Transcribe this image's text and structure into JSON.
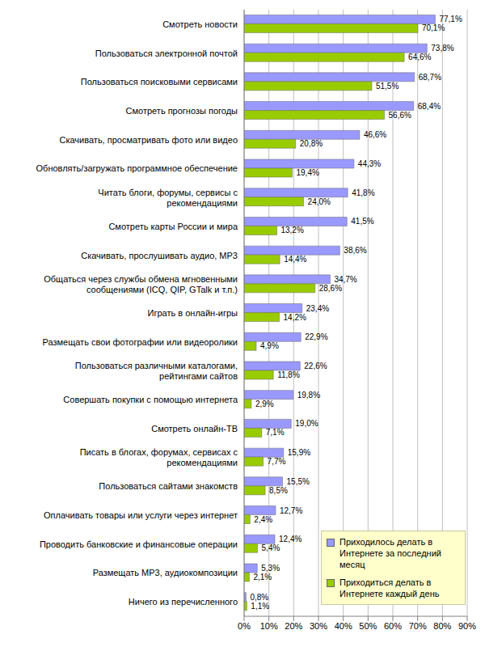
{
  "chart_data": {
    "type": "bar",
    "orientation": "horizontal",
    "categories": [
      "Смотреть новости",
      "Пользоваться электронной почтой",
      "Пользоваться поисковыми сервисами",
      "Смотреть прогнозы погоды",
      "Скачивать, просматривать фото или видео",
      "Обновлять/загружать программное обеспечение",
      "Читать блоги, форумы, сервисы с рекомендациями",
      "Смотреть карты России и мира",
      "Скачивать, прослушивать аудио, MP3",
      "Общаться через службы обмена мгновенными сообщениями (ICQ, QIP, GTalk и т.п.)",
      "Играть в онлайн-игры",
      "Размещать свои фотографии или видеоролики",
      "Пользоваться различными каталогами, рейтингами сайтов",
      "Совершать покупки с помощью интернета",
      "Смотреть онлайн-ТВ",
      "Писать в блогах, форумах, сервисах с рекомендациями",
      "Пользоваться сайтами знакомств",
      "Оплачивать товары или услуги через интернет",
      "Проводить банковские и финансовые операции",
      "Размещать MP3, аудиокомпозиции",
      "Ничего из перечисленного"
    ],
    "series": [
      {
        "name": "Приходилось делать в Интернете за последний месяц",
        "color": "#9999ff",
        "values": [
          77.1,
          73.8,
          68.7,
          68.4,
          46.6,
          44.3,
          41.8,
          41.5,
          38.6,
          34.7,
          23.4,
          22.9,
          22.6,
          19.8,
          19.0,
          15.9,
          15.5,
          12.7,
          12.4,
          5.3,
          0.8
        ],
        "value_labels": [
          "77,1%",
          "73,8%",
          "68,7%",
          "68,4%",
          "46,6%",
          "44,3%",
          "41,8%",
          "41,5%",
          "38,6%",
          "34,7%",
          "23,4%",
          "22,9%",
          "22,6%",
          "19,8%",
          "19,0%",
          "15,9%",
          "15,5%",
          "12,7%",
          "12,4%",
          "5,3%",
          "0,8%"
        ]
      },
      {
        "name": "Приходиться делать в Интернете каждый день",
        "color": "#99cc00",
        "values": [
          70.1,
          64.6,
          51.5,
          56.6,
          20.8,
          19.4,
          24.0,
          13.2,
          14.4,
          28.6,
          14.2,
          4.9,
          11.8,
          2.9,
          7.1,
          7.7,
          8.5,
          2.4,
          5.4,
          2.1,
          1.1
        ],
        "value_labels": [
          "70,1%",
          "64,6%",
          "51,5%",
          "56,6%",
          "20,8%",
          "19,4%",
          "24,0%",
          "13,2%",
          "14,4%",
          "28,6%",
          "14,2%",
          "4,9%",
          "11,8%",
          "2,9%",
          "7,1%",
          "7,7%",
          "8,5%",
          "2,4%",
          "5,4%",
          "2,1%",
          "1,1%"
        ]
      }
    ],
    "xlim": [
      0,
      90
    ],
    "xticks": [
      {
        "value": 0,
        "label": "0%"
      },
      {
        "value": 10,
        "label": "10%"
      },
      {
        "value": 20,
        "label": "20%"
      },
      {
        "value": 30,
        "label": "30%"
      },
      {
        "value": 40,
        "label": "40%"
      },
      {
        "value": 50,
        "label": "50%"
      },
      {
        "value": 60,
        "label": "60%"
      },
      {
        "value": 70,
        "label": "70%"
      },
      {
        "value": 80,
        "label": "80%"
      },
      {
        "value": 90,
        "label": "90%"
      }
    ],
    "grid": true,
    "legend": "lower right",
    "data_labels": true
  }
}
